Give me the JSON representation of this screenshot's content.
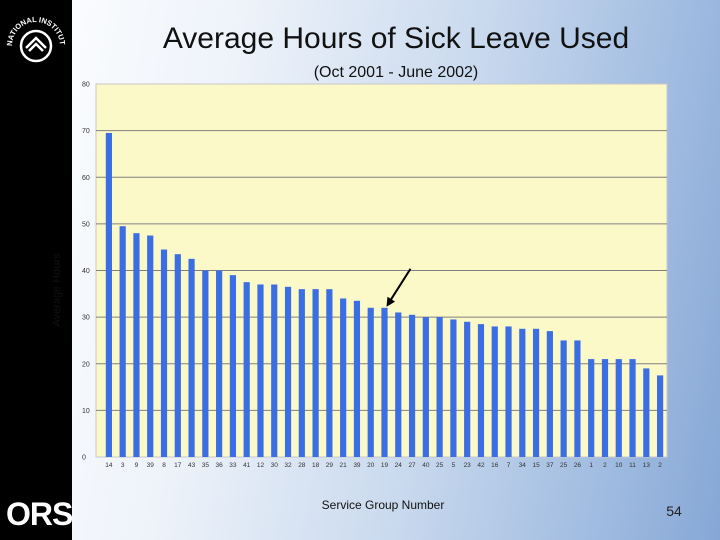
{
  "slide": {
    "title": "Average Hours of Sick Leave Used",
    "subtitle": "(Oct 2001 - June 2002)",
    "page_number": "54",
    "logo_text": "ORS",
    "nih_logo_text": "NATIONAL INSTITUTES OF HEALTH"
  },
  "colors": {
    "bar": "#3b6ee3",
    "plot_background": "#fbf9c7",
    "gridline": "#808080",
    "sidebar": "#000000",
    "arrow": "#000000"
  },
  "chart_data": {
    "type": "bar",
    "title": "Average Hours of Sick Leave Used",
    "subtitle": "(Oct 2001 - June 2002)",
    "xlabel": "Service Group Number",
    "ylabel": "Average Hours",
    "ylim": [
      0,
      80
    ],
    "yticks": [
      0,
      10,
      20,
      30,
      40,
      50,
      60,
      70,
      80
    ],
    "grid": true,
    "legend": "none",
    "categories": [
      "14",
      "3",
      "9",
      "39",
      "8",
      "17",
      "43",
      "35",
      "36",
      "33",
      "41",
      "12",
      "30",
      "32",
      "28",
      "18",
      "29",
      "21",
      "39",
      "20",
      "19",
      "24",
      "27",
      "40",
      "25",
      "5",
      "23",
      "42",
      "16",
      "7",
      "34",
      "15",
      "37",
      "25",
      "26",
      "1",
      "2",
      "10",
      "11",
      "13",
      "2"
    ],
    "values": [
      69.5,
      49.5,
      48,
      47.5,
      44.5,
      43.5,
      42.5,
      40,
      40,
      39,
      37.5,
      37,
      37,
      36.5,
      36,
      36,
      36,
      34,
      33.5,
      32,
      32,
      31,
      30.5,
      30,
      30,
      29.5,
      29,
      28.5,
      28,
      28,
      27.5,
      27.5,
      27,
      25,
      25,
      21,
      21,
      21,
      21,
      19,
      17.5
    ],
    "annotation": {
      "type": "arrow",
      "category_index": 20
    }
  }
}
